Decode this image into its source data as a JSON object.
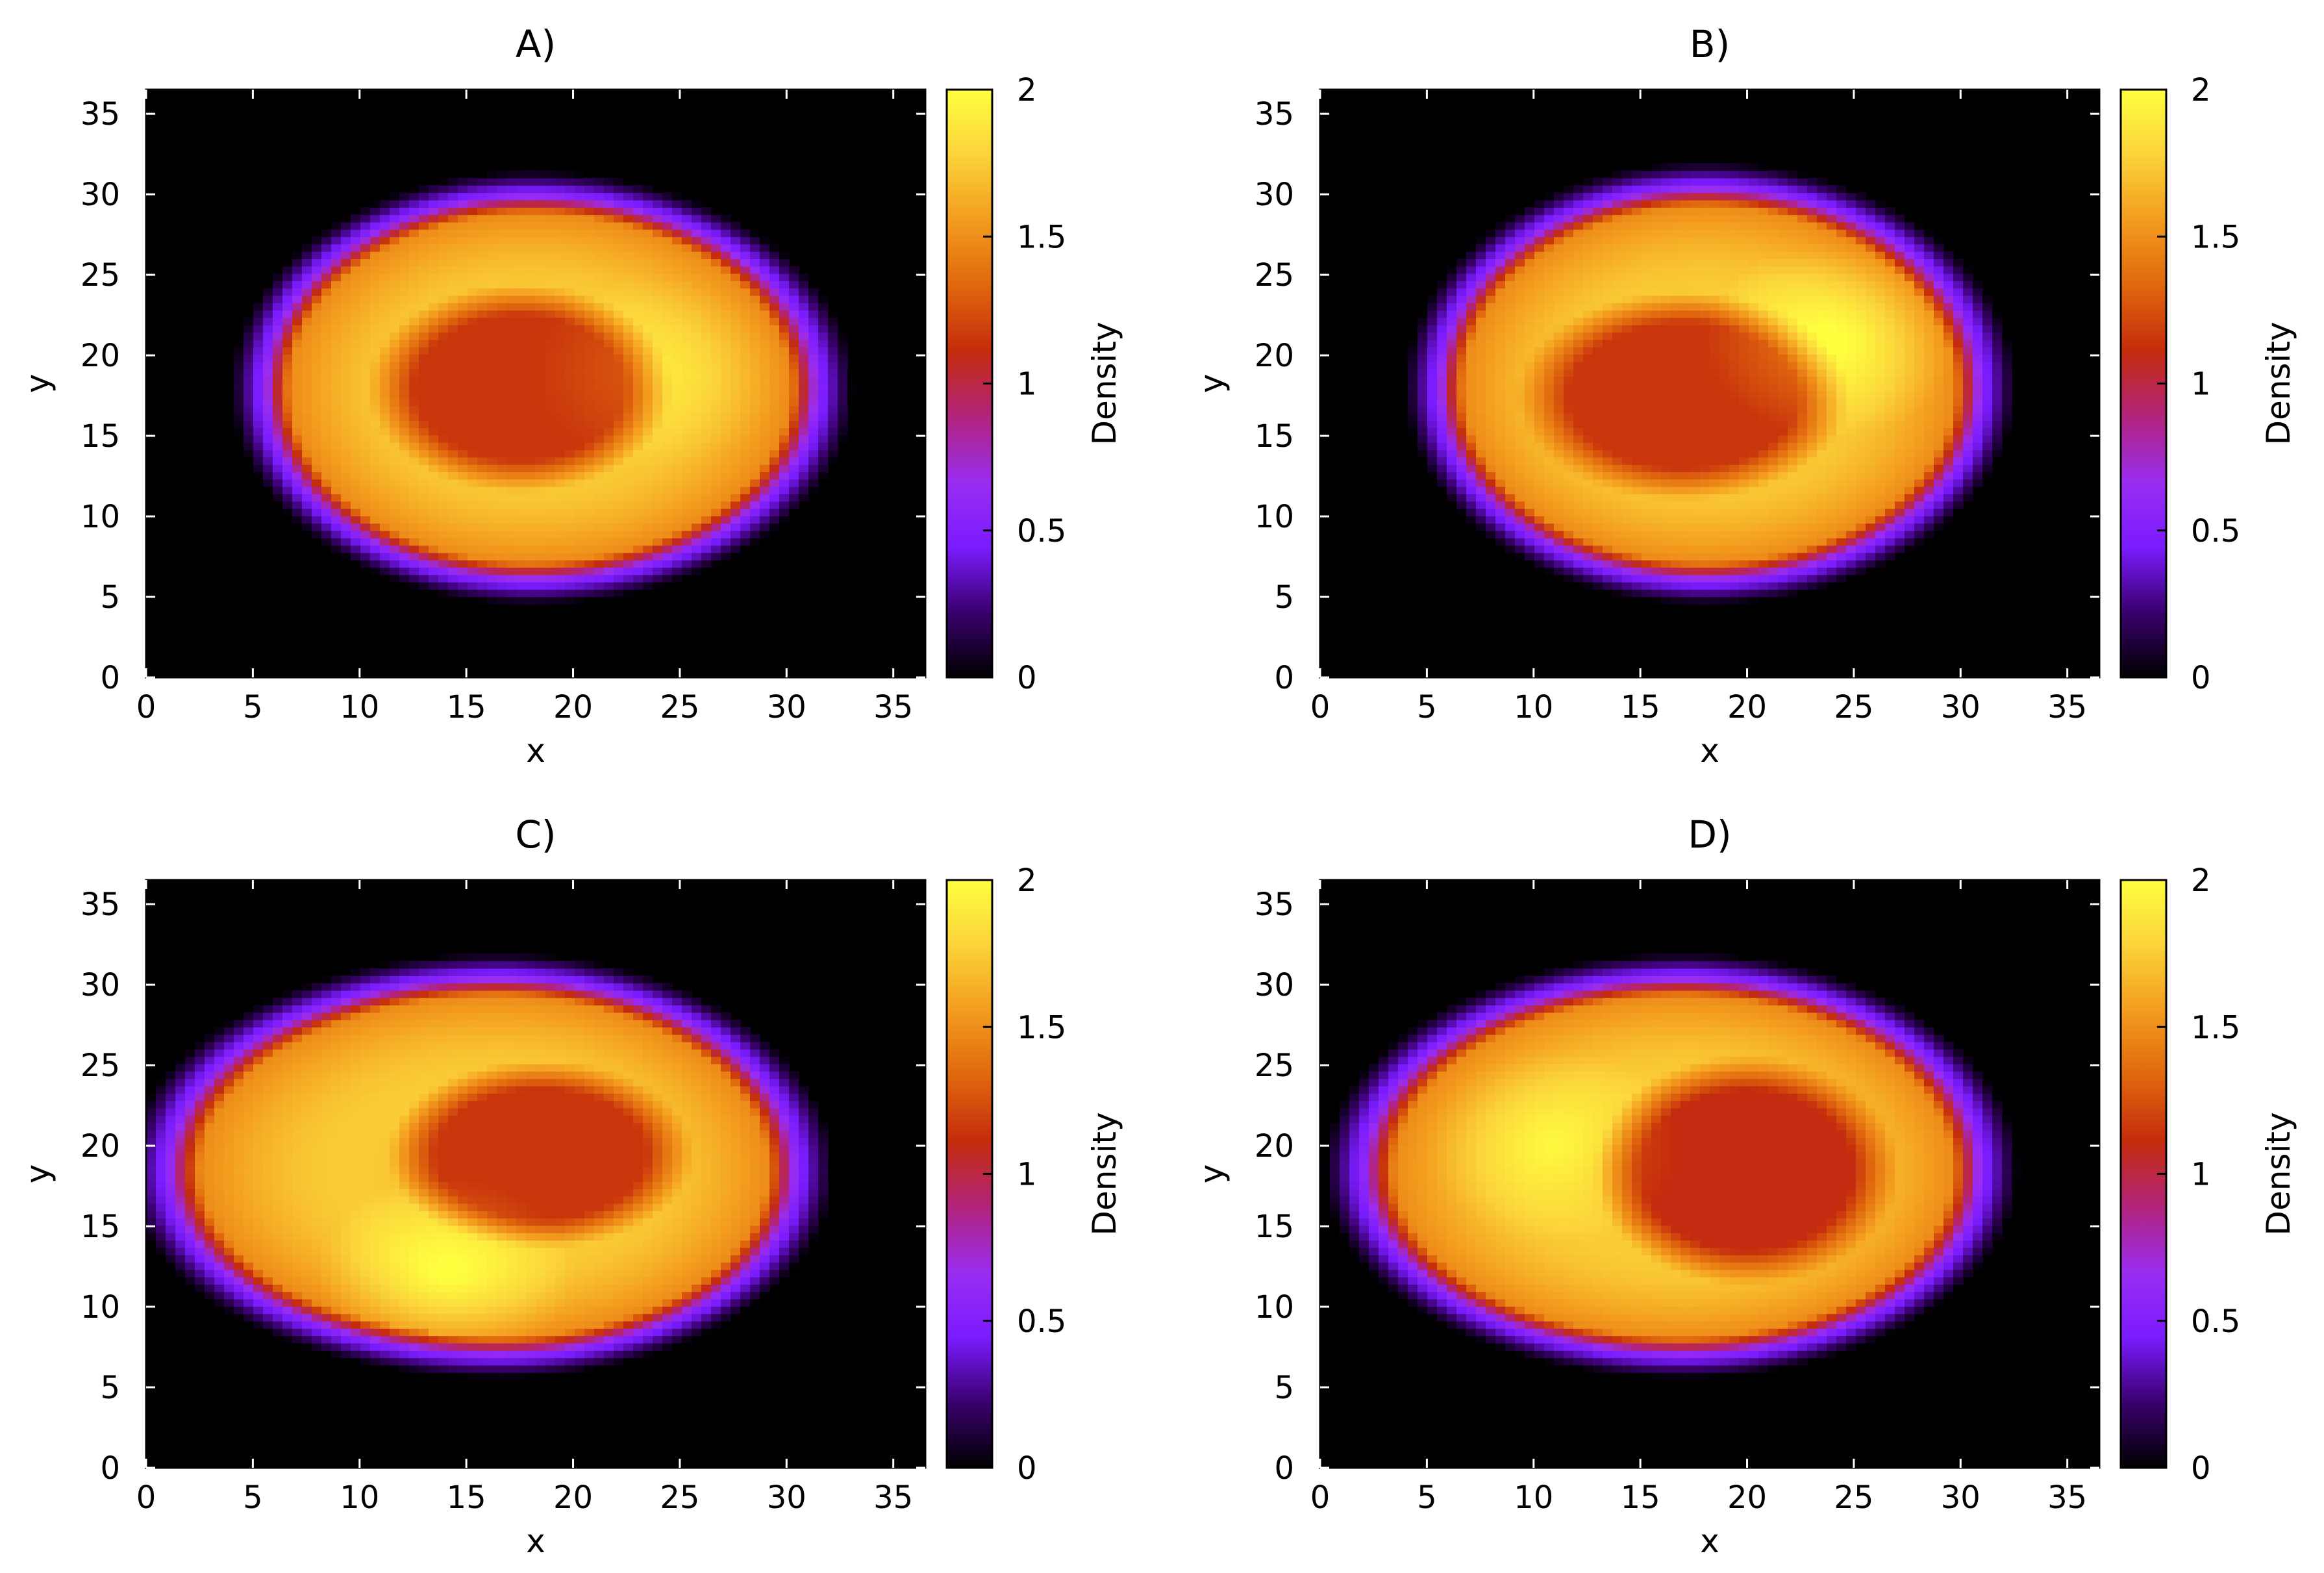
{
  "chart_data": [
    {
      "type": "heatmap",
      "title": "A)",
      "xlabel": "x",
      "ylabel": "y",
      "xlim": [
        0,
        36.5
      ],
      "ylim": [
        0,
        36.5
      ],
      "x_ticks": [
        0,
        5,
        10,
        15,
        20,
        25,
        30,
        35
      ],
      "y_ticks": [
        0,
        5,
        10,
        15,
        20,
        25,
        30,
        35
      ],
      "colorbar": {
        "label": "Density",
        "range": [
          0,
          2
        ],
        "ticks": [
          "0",
          "0.5",
          "1",
          "1.5",
          "2"
        ],
        "colormap": [
          "#000000",
          "#3a006e",
          "#7a1cff",
          "#9a2df0",
          "#b2237a",
          "#c42c0c",
          "#e0670e",
          "#f39c1e",
          "#fbd33a",
          "#ffff40"
        ]
      },
      "background": "#000000",
      "density_field": {
        "ring_center": [
          18,
          18
        ],
        "ring_radius_x": [
          12.5,
          13.5
        ],
        "ring_radius_y": [
          12,
          12
        ],
        "hole_center": [
          17.5,
          18
        ],
        "hole_radius": [
          5.5,
          5
        ],
        "ring_peak_density": 1.75,
        "hole_density": 1.15,
        "rim_density": 0.55,
        "highlight": {
          "x": 24,
          "y": 19,
          "density": 1.85
        }
      }
    },
    {
      "type": "heatmap",
      "title": "B)",
      "xlabel": "x",
      "ylabel": "y",
      "xlim": [
        0,
        36.5
      ],
      "ylim": [
        0,
        36.5
      ],
      "x_ticks": [
        0,
        5,
        10,
        15,
        20,
        25,
        30,
        35
      ],
      "y_ticks": [
        0,
        5,
        10,
        15,
        20,
        25,
        30,
        35
      ],
      "colorbar": {
        "label": "Density",
        "range": [
          0,
          2
        ],
        "ticks": [
          "0",
          "0.5",
          "1",
          "1.5",
          "2"
        ],
        "colormap": [
          "#000000",
          "#3a006e",
          "#7a1cff",
          "#9a2df0",
          "#b2237a",
          "#c42c0c",
          "#e0670e",
          "#f39c1e",
          "#fbd33a",
          "#ffff40"
        ]
      },
      "background": "#000000",
      "density_field": {
        "ring_center": [
          18,
          18
        ],
        "ring_radius_x": [
          12.5,
          13
        ],
        "ring_radius_y": [
          12,
          12.5
        ],
        "hole_center": [
          17,
          17.5
        ],
        "hole_radius": [
          6,
          5
        ],
        "ring_peak_density": 1.75,
        "hole_density": 1.15,
        "rim_density": 0.55,
        "highlight": {
          "x": 24,
          "y": 21,
          "density": 1.95
        }
      }
    },
    {
      "type": "heatmap",
      "title": "C)",
      "xlabel": "x",
      "ylabel": "y",
      "xlim": [
        0,
        36.5
      ],
      "ylim": [
        0,
        36.5
      ],
      "x_ticks": [
        0,
        5,
        10,
        15,
        20,
        25,
        30,
        35
      ],
      "y_ticks": [
        0,
        5,
        10,
        15,
        20,
        25,
        30,
        35
      ],
      "colorbar": {
        "label": "Density",
        "range": [
          0,
          2
        ],
        "ticks": [
          "0",
          "0.5",
          "1",
          "1.5",
          "2"
        ],
        "colormap": [
          "#000000",
          "#3a006e",
          "#7a1cff",
          "#9a2df0",
          "#b2237a",
          "#c42c0c",
          "#e0670e",
          "#f39c1e",
          "#fbd33a",
          "#ffff40"
        ]
      },
      "background": "#000000",
      "density_field": {
        "ring_center": [
          16.5,
          18.5
        ],
        "ring_radius_x": [
          15.5,
          14
        ],
        "ring_radius_y": [
          11.5,
          12
        ],
        "hole_center": [
          18.5,
          19.5
        ],
        "hole_radius": [
          5.5,
          4.5
        ],
        "ring_peak_density": 1.75,
        "hole_density": 1.15,
        "rim_density": 0.55,
        "highlight": {
          "x": 14,
          "y": 12,
          "density": 1.95
        }
      }
    },
    {
      "type": "heatmap",
      "title": "D)",
      "xlabel": "x",
      "ylabel": "y",
      "xlim": [
        0,
        36.5
      ],
      "ylim": [
        0,
        36.5
      ],
      "x_ticks": [
        0,
        5,
        10,
        15,
        20,
        25,
        30,
        35
      ],
      "y_ticks": [
        0,
        5,
        10,
        15,
        20,
        25,
        30,
        35
      ],
      "colorbar": {
        "label": "Density",
        "range": [
          0,
          2
        ],
        "ticks": [
          "0",
          "0.5",
          "1",
          "1.5",
          "2"
        ],
        "colormap": [
          "#000000",
          "#3a006e",
          "#7a1cff",
          "#9a2df0",
          "#b2237a",
          "#c42c0c",
          "#e0670e",
          "#f39c1e",
          "#fbd33a",
          "#ffff40"
        ]
      },
      "background": "#000000",
      "density_field": {
        "ring_center": [
          17,
          18.5
        ],
        "ring_radius_x": [
          15,
          14
        ],
        "ring_radius_y": [
          11.5,
          12
        ],
        "hole_center": [
          20,
          18.5
        ],
        "hole_radius": [
          5.5,
          5.5
        ],
        "ring_peak_density": 1.75,
        "hole_density": 1.1,
        "rim_density": 0.55,
        "highlight": {
          "x": 11,
          "y": 20,
          "density": 1.9
        }
      }
    }
  ]
}
